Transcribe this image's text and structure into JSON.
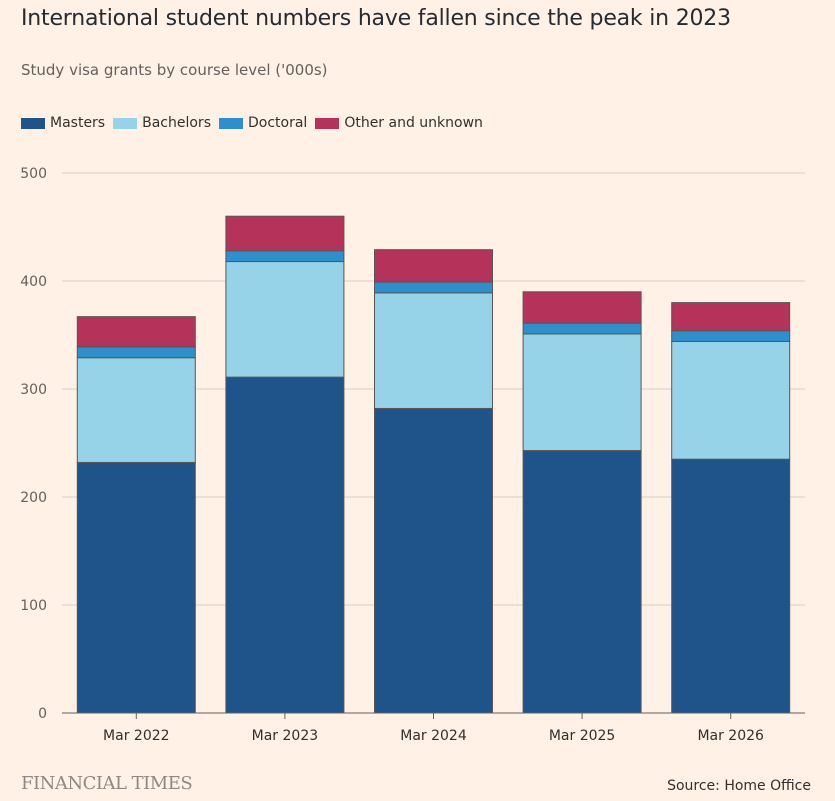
{
  "title": "International student numbers have fallen since the peak in 2023",
  "subtitle": "Study visa grants by course level ('000s)",
  "source": "Source: Home Office",
  "brand": "FINANCIAL TIMES",
  "colors": {
    "background": "#fff1e5",
    "gridline": "#d9cdc3",
    "axis": "#66605c",
    "bar_outline": "#5a5553"
  },
  "chart_data": {
    "type": "bar",
    "stacked": true,
    "categories": [
      "Mar 2022",
      "Mar 2023",
      "Mar 2024",
      "Mar 2025",
      "Mar 2026"
    ],
    "series": [
      {
        "name": "Masters",
        "color": "#1f548a",
        "values": [
          232,
          311,
          282,
          243,
          235
        ]
      },
      {
        "name": "Bachelors",
        "color": "#96d3e8",
        "values": [
          97,
          107,
          107,
          108,
          109
        ]
      },
      {
        "name": "Doctoral",
        "color": "#2d8fcb",
        "values": [
          10,
          10,
          10,
          10,
          10
        ]
      },
      {
        "name": "Other and unknown",
        "color": "#b5325a",
        "values": [
          28,
          32,
          30,
          29,
          26
        ]
      }
    ],
    "ylim": [
      0,
      500
    ],
    "yticks": [
      0,
      100,
      200,
      300,
      400,
      500
    ],
    "xlabel": "",
    "ylabel": "",
    "grid": true,
    "legend": "top-left"
  }
}
